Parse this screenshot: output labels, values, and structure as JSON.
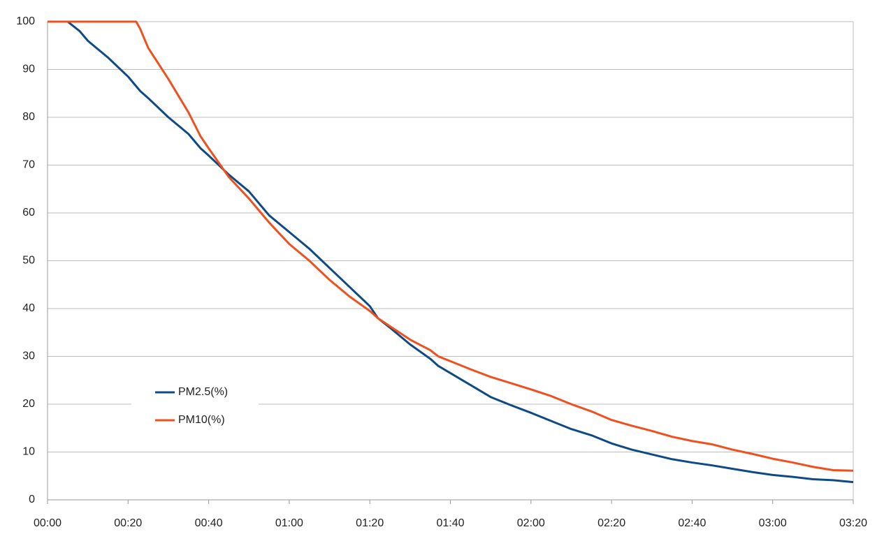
{
  "chart_data": {
    "type": "line",
    "x": [
      0,
      5,
      8,
      10,
      15,
      20,
      22,
      23,
      25,
      30,
      35,
      38,
      40,
      45,
      50,
      53,
      55,
      60,
      65,
      70,
      75,
      80,
      82,
      85,
      90,
      95,
      97,
      100,
      105,
      110,
      115,
      120,
      125,
      130,
      135,
      140,
      145,
      150,
      155,
      160,
      165,
      170,
      175,
      180,
      185,
      190,
      195,
      200
    ],
    "series": [
      {
        "name": "PM2.5(%)",
        "color": "#0e4a84",
        "values": [
          100,
          100,
          98,
          96,
          92.5,
          88.5,
          86.5,
          85.5,
          84,
          80,
          76.5,
          73.5,
          72,
          68,
          64.5,
          61.5,
          59.5,
          56,
          52.5,
          48.5,
          44.5,
          40.5,
          38,
          36,
          32.5,
          29.5,
          28,
          26.5,
          24,
          21.5,
          19.8,
          18.2,
          16.5,
          14.8,
          13.5,
          11.8,
          10.5,
          9.5,
          8.5,
          7.8,
          7.2,
          6.5,
          5.8,
          5.2,
          4.8,
          4.3,
          4.1,
          3.7
        ]
      },
      {
        "name": "PM10(%)",
        "color": "#f0501e",
        "values": [
          100,
          100,
          100,
          100,
          100,
          100,
          100,
          98.5,
          94.5,
          88,
          81,
          76,
          73.5,
          67.5,
          63,
          60,
          58,
          53.5,
          50,
          46,
          42.5,
          39.5,
          38,
          36.3,
          33.5,
          31.3,
          30,
          29,
          27.3,
          25.7,
          24.4,
          23.1,
          21.7,
          20,
          18.5,
          16.7,
          15.5,
          14.4,
          13.2,
          12.3,
          11.6,
          10.5,
          9.6,
          8.6,
          7.8,
          6.9,
          6.2,
          6.1
        ]
      }
    ],
    "xlim": [
      0,
      200
    ],
    "xticks": [
      {
        "value": 0,
        "label": "00:00"
      },
      {
        "value": 20,
        "label": "00:20"
      },
      {
        "value": 40,
        "label": "00:40"
      },
      {
        "value": 60,
        "label": "01:00"
      },
      {
        "value": 80,
        "label": "01:20"
      },
      {
        "value": 100,
        "label": "01:40"
      },
      {
        "value": 120,
        "label": "02:00"
      },
      {
        "value": 140,
        "label": "02:20"
      },
      {
        "value": 160,
        "label": "02:40"
      },
      {
        "value": 180,
        "label": "03:00"
      },
      {
        "value": 200,
        "label": "03:20"
      }
    ],
    "ylim": [
      0,
      100
    ],
    "yticks": [
      0,
      10,
      20,
      30,
      40,
      50,
      60,
      70,
      80,
      90,
      100
    ],
    "grid": true,
    "legend": "lower-left"
  }
}
